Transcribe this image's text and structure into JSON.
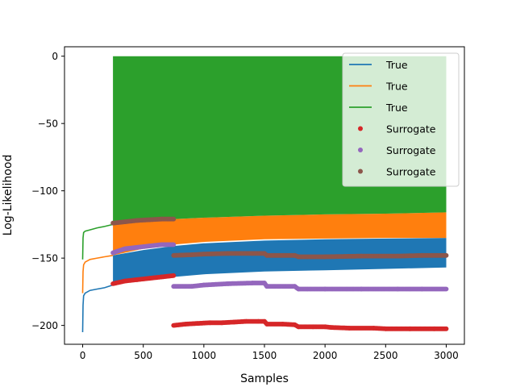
{
  "chart_data": {
    "type": "line",
    "title": "",
    "xlabel": "Samples",
    "ylabel": "Log-Likelihood",
    "xlim": [
      -150,
      3150
    ],
    "ylim": [
      -214,
      7
    ],
    "xticks": [
      0,
      500,
      1000,
      1500,
      2000,
      2500,
      3000
    ],
    "yticks": [
      0,
      -50,
      -100,
      -150,
      -200
    ],
    "grid": false,
    "legend_position": "top-right",
    "series": [
      {
        "name": "True",
        "kind": "line",
        "color": "#1f77b4",
        "points": [
          [
            0,
            -205
          ],
          [
            3,
            -185
          ],
          [
            8,
            -178
          ],
          [
            20,
            -176
          ],
          [
            60,
            -174
          ],
          [
            120,
            -173
          ],
          [
            180,
            -172
          ],
          [
            249,
            -170
          ]
        ],
        "band": {
          "x": [
            250,
            500,
            750,
            1000,
            1500,
            2000,
            2500,
            3000
          ],
          "low": [
            -170,
            -166,
            -164,
            -162,
            -160,
            -159,
            -158,
            -157
          ],
          "high": [
            -148,
            -144,
            -141,
            -139,
            -137,
            -136,
            -135.5,
            -135
          ]
        }
      },
      {
        "name": "True",
        "kind": "line",
        "color": "#ff7f0e",
        "points": [
          [
            0,
            -176
          ],
          [
            3,
            -160
          ],
          [
            8,
            -155
          ],
          [
            20,
            -153
          ],
          [
            60,
            -151
          ],
          [
            120,
            -150
          ],
          [
            180,
            -149
          ],
          [
            249,
            -148
          ]
        ],
        "band": {
          "x": [
            250,
            500,
            750,
            1000,
            1500,
            2000,
            2500,
            3000
          ],
          "low": [
            -148,
            -143,
            -140,
            -138,
            -136,
            -135.5,
            -135,
            -135
          ],
          "high": [
            -123,
            -122,
            -121,
            -120,
            -118.5,
            -117.5,
            -117,
            -116
          ]
        }
      },
      {
        "name": "True",
        "kind": "line",
        "color": "#2ca02c",
        "points": [
          [
            0,
            -151
          ],
          [
            3,
            -135
          ],
          [
            8,
            -131
          ],
          [
            20,
            -130
          ],
          [
            60,
            -129
          ],
          [
            120,
            -127.5
          ],
          [
            180,
            -126.5
          ],
          [
            249,
            -125
          ]
        ],
        "band": {
          "x": [
            250,
            500,
            750,
            1000,
            1500,
            2000,
            2500,
            3000
          ],
          "low": [
            -125,
            -122,
            -121,
            -120,
            -118.5,
            -117.5,
            -117,
            -116
          ],
          "high": [
            0,
            0,
            0,
            0,
            0,
            0,
            0,
            0
          ]
        }
      },
      {
        "name": "Surrogate",
        "kind": "markers",
        "color": "#d62728",
        "points": [
          [
            250,
            -169
          ],
          [
            350,
            -167
          ],
          [
            450,
            -166
          ],
          [
            550,
            -165
          ],
          [
            650,
            -164
          ],
          [
            750,
            -163
          ],
          [
            750,
            -200
          ],
          [
            850,
            -199
          ],
          [
            950,
            -198.5
          ],
          [
            1050,
            -198
          ],
          [
            1150,
            -198
          ],
          [
            1250,
            -197.5
          ],
          [
            1350,
            -197
          ],
          [
            1450,
            -197
          ],
          [
            1500,
            -197
          ],
          [
            1520,
            -199
          ],
          [
            1650,
            -199
          ],
          [
            1750,
            -199.5
          ],
          [
            1780,
            -201
          ],
          [
            1900,
            -201
          ],
          [
            2000,
            -201
          ],
          [
            2050,
            -201.5
          ],
          [
            2200,
            -202
          ],
          [
            2400,
            -202
          ],
          [
            2500,
            -202.5
          ],
          [
            2700,
            -202.5
          ],
          [
            2900,
            -202.5
          ],
          [
            3000,
            -202.5
          ]
        ]
      },
      {
        "name": "Surrogate",
        "kind": "markers",
        "color": "#9467bd",
        "points": [
          [
            250,
            -146
          ],
          [
            350,
            -143
          ],
          [
            450,
            -142
          ],
          [
            550,
            -141
          ],
          [
            650,
            -140
          ],
          [
            750,
            -140
          ],
          [
            750,
            -171
          ],
          [
            900,
            -171
          ],
          [
            1000,
            -170
          ],
          [
            1200,
            -169
          ],
          [
            1400,
            -168.5
          ],
          [
            1500,
            -168.5
          ],
          [
            1520,
            -171
          ],
          [
            1750,
            -171
          ],
          [
            1780,
            -173
          ],
          [
            2000,
            -173
          ],
          [
            2300,
            -173
          ],
          [
            2600,
            -173
          ],
          [
            2800,
            -173
          ],
          [
            3000,
            -173
          ]
        ]
      },
      {
        "name": "Surrogate",
        "kind": "markers",
        "color": "#8c564b",
        "points": [
          [
            250,
            -124
          ],
          [
            350,
            -123
          ],
          [
            450,
            -122
          ],
          [
            550,
            -121.5
          ],
          [
            650,
            -121
          ],
          [
            750,
            -121
          ],
          [
            750,
            -148
          ],
          [
            900,
            -147.5
          ],
          [
            1000,
            -147
          ],
          [
            1200,
            -146.5
          ],
          [
            1400,
            -146.5
          ],
          [
            1500,
            -146.5
          ],
          [
            1520,
            -148
          ],
          [
            1750,
            -148
          ],
          [
            1780,
            -149
          ],
          [
            2000,
            -149
          ],
          [
            2300,
            -148.5
          ],
          [
            2600,
            -148.5
          ],
          [
            2800,
            -148
          ],
          [
            3000,
            -148
          ]
        ]
      }
    ]
  }
}
